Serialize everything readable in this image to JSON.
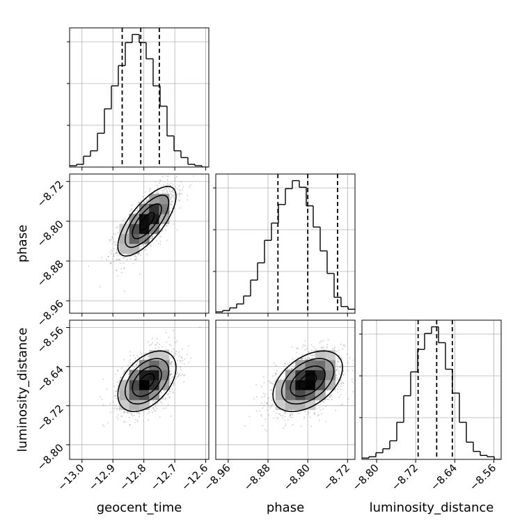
{
  "chart_data": {
    "type": "corner",
    "parameters": [
      "geocent_time",
      "phase",
      "luminosity_distance"
    ],
    "grid": true,
    "colors": {
      "line": "#000000",
      "grid": "#b0b0b0",
      "points": "#9a9a9a"
    },
    "ranges": {
      "geocent_time": [
        -13.04,
        -12.59
      ],
      "phase": [
        -8.985,
        -8.705
      ],
      "luminosity_distance": [
        -8.83,
        -8.545
      ]
    },
    "ticks": {
      "geocent_time": [
        -13.0,
        -12.9,
        -12.8,
        -12.7,
        -12.6
      ],
      "phase": [
        -8.96,
        -8.88,
        -8.8,
        -8.72
      ],
      "luminosity_distance": [
        -8.8,
        -8.72,
        -8.64,
        -8.56
      ]
    },
    "tick_labels": {
      "geocent_time": [
        "−13.0",
        "−12.9",
        "−12.8",
        "−12.7",
        "−12.6"
      ],
      "phase": [
        "−8.96",
        "−8.88",
        "−8.80",
        "−8.72"
      ],
      "luminosity_distance": [
        "−8.80",
        "−8.72",
        "−8.64",
        "−8.56"
      ]
    },
    "histograms": {
      "geocent_time": {
        "bin_start": -13.04,
        "bin_width": 0.0225,
        "counts": [
          1,
          2,
          8,
          12,
          25,
          43,
          60,
          75,
          92,
          98,
          92,
          80,
          60,
          45,
          23,
          12,
          7,
          2,
          1,
          0
        ],
        "quantiles": [
          -12.87,
          -12.81,
          -12.75
        ]
      },
      "phase": {
        "bin_start": -8.985,
        "bin_width": 0.014,
        "counts": [
          1,
          2,
          4,
          7,
          13,
          25,
          38,
          55,
          68,
          82,
          94,
          100,
          95,
          81,
          65,
          47,
          30,
          12,
          5,
          3
        ],
        "quantiles": [
          -8.86,
          -8.8,
          -8.74
        ]
      },
      "luminosity_distance": {
        "bin_start": -8.83,
        "bin_width": 0.01425,
        "counts": [
          1,
          2,
          5,
          8,
          14,
          28,
          48,
          66,
          83,
          95,
          100,
          88,
          68,
          50,
          28,
          13,
          6,
          3,
          2,
          0
        ],
        "quantiles": [
          -8.715,
          -8.677,
          -8.645
        ]
      }
    },
    "joint": {
      "phase|geocent_time": {
        "mean": [
          -12.79,
          -8.8
        ],
        "sd": [
          0.047,
          0.035
        ],
        "rho": 0.72
      },
      "luminosity_distance|geocent_time": {
        "mean": [
          -12.79,
          -8.67
        ],
        "sd": [
          0.047,
          0.031
        ],
        "rho": 0.45
      },
      "luminosity_distance|phase": {
        "mean": [
          -8.8,
          -8.67
        ],
        "sd": [
          0.035,
          0.031
        ],
        "rho": 0.45
      }
    }
  }
}
